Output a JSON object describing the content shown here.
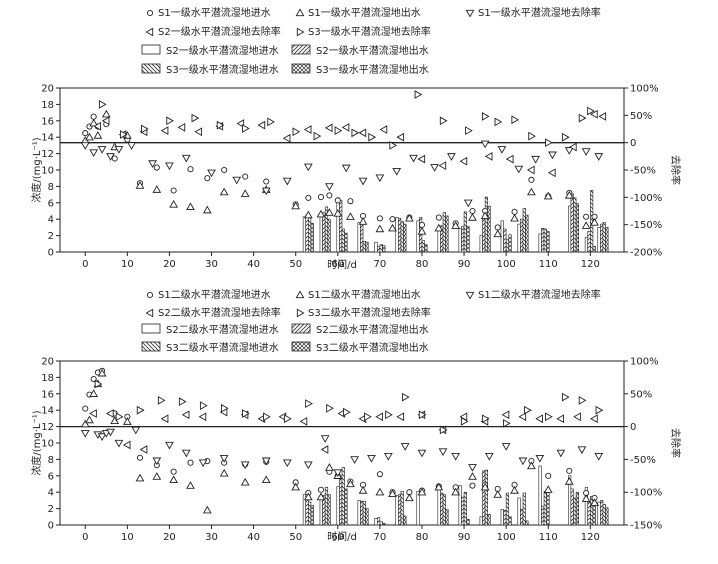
{
  "chart_data": [
    {
      "type": "scatter+bar",
      "legend": {
        "s1_in": "S1一级水平潜流湿地进水",
        "s1_out": "S1一级水平潜流湿地出水",
        "s1_rate": "S1一级水平潜流湿地去除率",
        "s2_rate": "S2一级水平潜流湿地去除率",
        "s3_rate": "S3一级水平潜流湿地去除率",
        "s2_in": "S2一级水平潜流湿地进水",
        "s2_out": "S2一级水平潜流湿地出水",
        "s3_in": "S3一级水平潜流湿地进水",
        "s3_out": "S3一级水平潜流湿地出水"
      },
      "xlabel": "时间/d",
      "ylabel": "浓度/(mg·L⁻¹)",
      "y2label": "去除率",
      "xlim": [
        -6,
        128
      ],
      "ylim": [
        0,
        20
      ],
      "y2lim": [
        -200,
        100
      ],
      "xticks": [
        0,
        10,
        20,
        30,
        40,
        50,
        60,
        70,
        80,
        90,
        100,
        110,
        120
      ],
      "yticks": [
        0,
        2,
        4,
        6,
        8,
        10,
        12,
        14,
        16,
        18,
        20
      ],
      "y2ticks": [
        -200,
        -150,
        -100,
        -50,
        0,
        50,
        100
      ],
      "y2ticklabels": [
        "-200%",
        "-150%",
        "-100%",
        "-50%",
        "0",
        "50%",
        "100%"
      ],
      "series": {
        "s1_in": {
          "x": [
            0,
            1,
            2,
            3,
            5,
            7,
            10,
            13,
            17,
            21,
            25,
            29,
            33,
            38,
            43,
            50,
            53,
            56,
            58,
            60,
            63,
            66,
            70,
            73,
            77,
            80,
            84,
            88,
            92,
            95,
            98,
            102,
            106,
            110,
            115,
            119,
            121
          ],
          "y": [
            14.5,
            15.3,
            16.5,
            15.3,
            15.6,
            11.4,
            13.7,
            8.4,
            10.3,
            7.5,
            10.1,
            9.0,
            10.0,
            9.2,
            8.6,
            5.8,
            6.6,
            6.7,
            6.9,
            6.3,
            6.2,
            4.4,
            4.1,
            4.0,
            4.2,
            3.3,
            4.2,
            3.5,
            5.0,
            5.0,
            3.0,
            4.9,
            8.8,
            6.8,
            7.2,
            4.3,
            4.3
          ]
        },
        "s1_out": {
          "x": [
            0,
            1,
            2,
            3,
            5,
            7,
            10,
            13,
            17,
            21,
            25,
            29,
            33,
            38,
            43,
            50,
            53,
            56,
            58,
            60,
            63,
            66,
            70,
            73,
            77,
            80,
            84,
            88,
            92,
            95,
            98,
            102,
            106,
            110,
            115,
            119,
            121
          ],
          "y": [
            13.6,
            14.0,
            15.7,
            14.2,
            16.8,
            12.8,
            14.2,
            8.1,
            7.6,
            5.8,
            5.5,
            5.1,
            7.3,
            7.1,
            7.6,
            5.6,
            4.5,
            4.6,
            4.8,
            4.7,
            4.3,
            3.7,
            2.8,
            2.9,
            4.1,
            2.5,
            2.9,
            3.2,
            4.2,
            4.4,
            2.2,
            4.1,
            7.3,
            6.8,
            6.9,
            3.2,
            3.6
          ]
        },
        "s1_rate": {
          "x": [
            0,
            2,
            4,
            6,
            8,
            11,
            16,
            20,
            24,
            30,
            36,
            43,
            48,
            53,
            58,
            62,
            66,
            70,
            74,
            78,
            83,
            87,
            91,
            95,
            99,
            103,
            107,
            111,
            115,
            119,
            122
          ],
          "y": [
            -5,
            -18,
            -12,
            -25,
            -12,
            -5,
            -38,
            -42,
            -28,
            -55,
            -68,
            -88,
            -70,
            -44,
            -80,
            -46,
            -70,
            -64,
            -52,
            -28,
            -45,
            -25,
            -110,
            -2,
            -12,
            -48,
            -30,
            -22,
            -14,
            -16,
            -25
          ]
        },
        "s2_rate": {
          "x": [
            3,
            5,
            9,
            14,
            19,
            23,
            27,
            32,
            37,
            42,
            48,
            53,
            58,
            62,
            66,
            71,
            75,
            80,
            85,
            90,
            96,
            101,
            106,
            111,
            116,
            121,
            123
          ],
          "y": [
            30,
            40,
            15,
            20,
            22,
            28,
            20,
            30,
            35,
            32,
            8,
            24,
            27,
            28,
            18,
            24,
            10,
            -30,
            -42,
            -34,
            -25,
            -30,
            -50,
            -55,
            -8,
            52,
            48
          ]
        },
        "s3_rate": {
          "x": [
            4,
            9,
            14,
            20,
            26,
            32,
            38,
            44,
            50,
            55,
            60,
            64,
            68,
            73,
            79,
            85,
            91,
            95,
            98,
            102,
            106,
            110,
            114,
            118,
            120
          ],
          "y": [
            70,
            15,
            25,
            40,
            45,
            32,
            26,
            38,
            20,
            12,
            22,
            18,
            10,
            -5,
            88,
            40,
            22,
            48,
            38,
            42,
            12,
            0,
            10,
            45,
            58
          ]
        },
        "bars_x": [
          53,
          57,
          61,
          66,
          70,
          75,
          80,
          85,
          90,
          95,
          100,
          104,
          109,
          116,
          120,
          123
        ],
        "s2_in": [
          4.3,
          4.4,
          6.6,
          3.6,
          1.2,
          4.2,
          3.8,
          2.7,
          2.9,
          2.0,
          3.8,
          3.4,
          2.2,
          5.6,
          1.8,
          3.0
        ],
        "s2_out": [
          4.5,
          4.8,
          6.3,
          3.5,
          0.7,
          4.1,
          4.2,
          3.2,
          3.1,
          4.3,
          2.8,
          4.0,
          2.9,
          7.1,
          2.5,
          3.4
        ],
        "s3_in": [
          4.3,
          5.5,
          2.8,
          1.3,
          0.9,
          3.7,
          1.4,
          4.8,
          4.9,
          6.7,
          1.5,
          5.3,
          2.8,
          6.6,
          7.5,
          3.6
        ],
        "s3_out": [
          3.5,
          4.0,
          2.3,
          1.2,
          0.8,
          3.4,
          0.9,
          4.4,
          3.1,
          5.6,
          2.1,
          4.5,
          2.5,
          5.9,
          0.7,
          3.0
        ]
      }
    },
    {
      "type": "scatter+bar",
      "legend": {
        "s1_in": "S1二级水平潜流湿地进水",
        "s1_out": "S1二级水平潜流湿地出水",
        "s1_rate": "S1二级水平潜流湿地去除率",
        "s2_rate": "S2二级水平潜流湿地去除率",
        "s3_rate": "S3二级水平潜流湿地去除率",
        "s2_in": "S2二级水平潜流湿地进水",
        "s2_out": "S2二级水平潜流湿地出水",
        "s3_in": "S3二级水平潜流湿地进水",
        "s3_out": "S3二级水平潜流湿地出水"
      },
      "xlabel": "时间/d",
      "ylabel": "浓度/(mg·L⁻¹)",
      "y2label": "去除率",
      "xlim": [
        -6,
        128
      ],
      "ylim": [
        0,
        20
      ],
      "y2lim": [
        -150,
        100
      ],
      "xticks": [
        0,
        10,
        20,
        30,
        40,
        50,
        60,
        70,
        80,
        90,
        100,
        110,
        120
      ],
      "yticks": [
        0,
        2,
        4,
        6,
        8,
        10,
        12,
        14,
        16,
        18,
        20
      ],
      "y2ticks": [
        -150,
        -100,
        -50,
        0,
        50,
        100
      ],
      "y2ticklabels": [
        "-150%",
        "-100%",
        "-50%",
        "0",
        "50%",
        "100%"
      ],
      "series": {
        "s1_in": {
          "x": [
            0,
            1,
            2,
            3,
            4,
            7,
            10,
            13,
            17,
            21,
            25,
            29,
            33,
            38,
            43,
            50,
            53,
            56,
            58,
            60,
            63,
            66,
            70,
            73,
            77,
            80,
            84,
            88,
            92,
            95,
            98,
            102,
            106,
            110,
            115,
            119,
            121
          ],
          "y": [
            14.2,
            15.9,
            17.8,
            18.6,
            18.8,
            13.6,
            13.2,
            8.2,
            7.3,
            6.5,
            7.6,
            7.8,
            7.6,
            7.4,
            7.7,
            5.2,
            3.9,
            4.3,
            6.5,
            6.0,
            5.3,
            4.9,
            6.2,
            4.0,
            4.0,
            4.2,
            4.7,
            4.6,
            4.8,
            4.9,
            4.4,
            4.9,
            7.8,
            6.0,
            6.6,
            3.9,
            3.3
          ]
        },
        "s1_out": {
          "x": [
            0,
            1,
            2,
            3,
            4,
            7,
            10,
            13,
            17,
            21,
            25,
            29,
            33,
            38,
            43,
            50,
            53,
            56,
            58,
            60,
            63,
            66,
            70,
            73,
            77,
            80,
            84,
            88,
            92,
            95,
            98,
            102,
            106,
            110,
            115,
            119,
            121
          ],
          "y": [
            12.3,
            12.8,
            16.0,
            17.2,
            18.5,
            12.7,
            12.6,
            5.7,
            5.9,
            5.5,
            4.8,
            1.8,
            6.3,
            5.2,
            5.5,
            4.6,
            3.4,
            3.4,
            7.0,
            6.0,
            5.0,
            4.2,
            4.0,
            3.8,
            3.3,
            4.0,
            4.6,
            4.0,
            5.9,
            4.6,
            3.7,
            4.2,
            7.2,
            4.3,
            5.3,
            3.2,
            2.7
          ]
        },
        "s1_rate": {
          "x": [
            0,
            3,
            4,
            5,
            6,
            8,
            12,
            17,
            20,
            24,
            28,
            33,
            38,
            43,
            48,
            53,
            57,
            60,
            64,
            68,
            72,
            76,
            80,
            85,
            88,
            92,
            96,
            100,
            104,
            108,
            113,
            118,
            122
          ],
          "y": [
            -10,
            -12,
            -15,
            -10,
            -8,
            -25,
            -5,
            -52,
            -28,
            -40,
            -55,
            -48,
            -58,
            -52,
            -55,
            -58,
            -18,
            -70,
            -50,
            -48,
            -45,
            -30,
            -40,
            -38,
            -45,
            -62,
            -45,
            -30,
            -52,
            -48,
            -40,
            -35,
            -45
          ]
        },
        "s2_rate": {
          "x": [
            2,
            6,
            10,
            14,
            19,
            24,
            28,
            33,
            38,
            42,
            47,
            52,
            57,
            61,
            66,
            70,
            75,
            80,
            85,
            90,
            95,
            100,
            104,
            108,
            113,
            117,
            121
          ],
          "y": [
            20,
            20,
            -28,
            -35,
            12,
            18,
            15,
            22,
            18,
            12,
            15,
            8,
            -35,
            20,
            12,
            15,
            15,
            18,
            -5,
            15,
            8,
            18,
            15,
            12,
            12,
            15,
            12
          ]
        },
        "s3_rate": {
          "x": [
            3,
            8,
            13,
            18,
            23,
            28,
            33,
            38,
            43,
            48,
            53,
            58,
            62,
            67,
            72,
            76,
            80,
            85,
            90,
            95,
            100,
            105,
            110,
            114,
            118,
            122
          ],
          "y": [
            65,
            15,
            25,
            40,
            38,
            32,
            28,
            20,
            15,
            12,
            35,
            28,
            22,
            15,
            18,
            45,
            18,
            -5,
            8,
            12,
            5,
            25,
            15,
            45,
            40,
            25
          ]
        },
        "bars_x": [
          53,
          57,
          61,
          66,
          70,
          75,
          80,
          85,
          90,
          95,
          100,
          104,
          109,
          116,
          120,
          123
        ],
        "s2_in": [
          3.7,
          3.5,
          4.7,
          3.0,
          0.8,
          3.6,
          4.1,
          4.7,
          4.8,
          1.0,
          1.9,
          3.3,
          7.2,
          6.0,
          4.6,
          2.8
        ],
        "s2_out": [
          3.4,
          3.6,
          5.9,
          2.9,
          0.9,
          3.7,
          0.0,
          3.9,
          3.4,
          6.6,
          1.8,
          1.9,
          2.3,
          4.4,
          2.8,
          3.0
        ],
        "s3_in": [
          2.8,
          4.6,
          7.0,
          2.9,
          0.4,
          4.1,
          0.0,
          3.7,
          4.0,
          6.7,
          3.9,
          3.9,
          4.1,
          3.3,
          3.5,
          2.5
        ],
        "s3_out": [
          2.4,
          3.7,
          4.4,
          2.0,
          0.2,
          1.1,
          0.0,
          1.9,
          0.7,
          1.3,
          1.0,
          0.5,
          4.0,
          4.0,
          2.5,
          2.1
        ]
      }
    }
  ]
}
